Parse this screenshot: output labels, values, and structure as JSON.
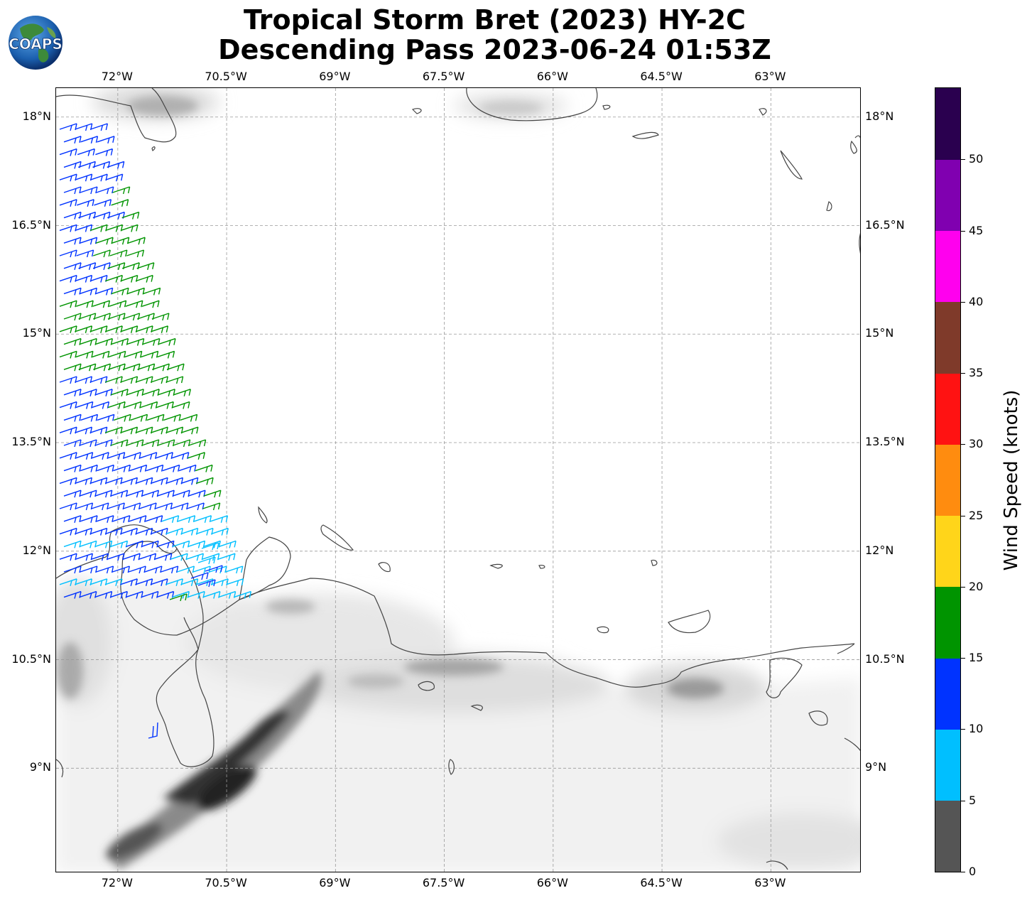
{
  "title_line1": "Tropical Storm Bret (2023) HY-2C",
  "title_line2": "Descending Pass 2023-06-24 01:53Z",
  "logo_text": "COAPS",
  "map": {
    "lon_range": [
      -72.85,
      -61.75
    ],
    "lat_range": [
      7.55,
      18.4
    ],
    "lon_labels": [
      "72°W",
      "70.5°W",
      "69°W",
      "67.5°W",
      "66°W",
      "64.5°W",
      "63°W"
    ],
    "lat_labels": [
      "18°N",
      "16.5°N",
      "15°N",
      "13.5°N",
      "12°N",
      "10.5°N",
      "9°N"
    ],
    "gridlines": true,
    "background": "grayscale terrain shading over land"
  },
  "colorbar": {
    "label": "Wind Speed (knots)",
    "ticks": [
      "0",
      "5",
      "10",
      "15",
      "20",
      "25",
      "30",
      "35",
      "40",
      "45",
      "50"
    ],
    "bins": [
      {
        "range": "0-5",
        "color": "#555555"
      },
      {
        "range": "5-10",
        "color": "#00bfff"
      },
      {
        "range": "10-15",
        "color": "#0033ff"
      },
      {
        "range": "15-20",
        "color": "#009400"
      },
      {
        "range": "20-25",
        "color": "#ffd51a"
      },
      {
        "range": "25-30",
        "color": "#ff8c0f"
      },
      {
        "range": "30-35",
        "color": "#ff1212"
      },
      {
        "range": "35-40",
        "color": "#7f3a2a"
      },
      {
        "range": "40-45",
        "color": "#ff00ee"
      },
      {
        "range": "45-50",
        "color": "#8000b0"
      },
      {
        "range": "50+",
        "color": "#2a004f"
      }
    ]
  }
}
